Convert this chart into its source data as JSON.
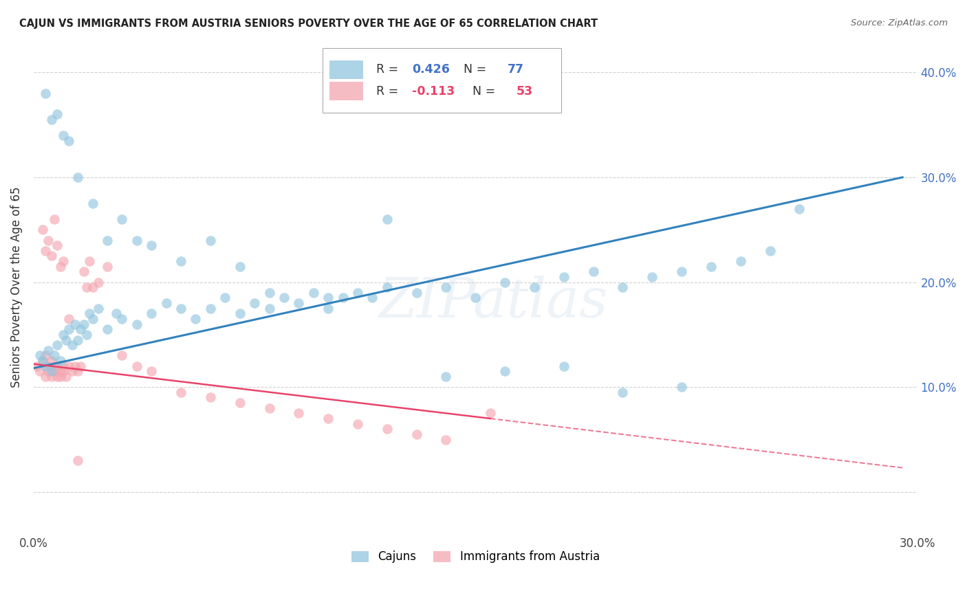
{
  "title": "CAJUN VS IMMIGRANTS FROM AUSTRIA SENIORS POVERTY OVER THE AGE OF 65 CORRELATION CHART",
  "source": "Source: ZipAtlas.com",
  "ylabel": "Seniors Poverty Over the Age of 65",
  "xlim": [
    0.0,
    0.3
  ],
  "ylim": [
    -0.04,
    0.43
  ],
  "cajun_R": 0.426,
  "cajun_N": 77,
  "austria_R": -0.113,
  "austria_N": 53,
  "cajun_color": "#92c5de",
  "austria_color": "#f4a6b0",
  "cajun_line_color": "#3282bd",
  "austria_line_color": "#e8436a",
  "austria_line_solid_end": 0.155,
  "watermark": "ZIPatlas",
  "legend_R_color": "#4472c4",
  "legend_austria_R_color": "#e8436a",
  "cajun_x": [
    0.002,
    0.003,
    0.004,
    0.005,
    0.006,
    0.007,
    0.008,
    0.009,
    0.01,
    0.011,
    0.012,
    0.013,
    0.014,
    0.015,
    0.016,
    0.017,
    0.018,
    0.019,
    0.02,
    0.022,
    0.025,
    0.028,
    0.03,
    0.035,
    0.04,
    0.045,
    0.05,
    0.055,
    0.06,
    0.065,
    0.07,
    0.075,
    0.08,
    0.085,
    0.09,
    0.095,
    0.1,
    0.105,
    0.11,
    0.115,
    0.12,
    0.13,
    0.14,
    0.15,
    0.16,
    0.17,
    0.18,
    0.19,
    0.2,
    0.21,
    0.22,
    0.23,
    0.24,
    0.25,
    0.004,
    0.006,
    0.008,
    0.01,
    0.012,
    0.015,
    0.02,
    0.025,
    0.03,
    0.035,
    0.04,
    0.05,
    0.06,
    0.07,
    0.08,
    0.1,
    0.12,
    0.14,
    0.16,
    0.18,
    0.2,
    0.22,
    0.26
  ],
  "cajun_y": [
    0.13,
    0.125,
    0.12,
    0.135,
    0.115,
    0.13,
    0.14,
    0.125,
    0.15,
    0.145,
    0.155,
    0.14,
    0.16,
    0.145,
    0.155,
    0.16,
    0.15,
    0.17,
    0.165,
    0.175,
    0.155,
    0.17,
    0.165,
    0.16,
    0.17,
    0.18,
    0.175,
    0.165,
    0.175,
    0.185,
    0.17,
    0.18,
    0.175,
    0.185,
    0.18,
    0.19,
    0.175,
    0.185,
    0.19,
    0.185,
    0.195,
    0.19,
    0.195,
    0.185,
    0.2,
    0.195,
    0.205,
    0.21,
    0.195,
    0.205,
    0.21,
    0.215,
    0.22,
    0.23,
    0.38,
    0.355,
    0.36,
    0.34,
    0.335,
    0.3,
    0.275,
    0.24,
    0.26,
    0.24,
    0.235,
    0.22,
    0.24,
    0.215,
    0.19,
    0.185,
    0.26,
    0.11,
    0.115,
    0.12,
    0.095,
    0.1,
    0.27
  ],
  "austria_x": [
    0.001,
    0.002,
    0.003,
    0.004,
    0.004,
    0.005,
    0.005,
    0.006,
    0.006,
    0.007,
    0.007,
    0.008,
    0.008,
    0.009,
    0.009,
    0.01,
    0.01,
    0.011,
    0.012,
    0.013,
    0.014,
    0.015,
    0.016,
    0.017,
    0.018,
    0.019,
    0.02,
    0.022,
    0.025,
    0.03,
    0.035,
    0.04,
    0.05,
    0.06,
    0.07,
    0.08,
    0.09,
    0.1,
    0.11,
    0.12,
    0.13,
    0.14,
    0.155,
    0.003,
    0.004,
    0.005,
    0.006,
    0.007,
    0.008,
    0.009,
    0.01,
    0.012,
    0.015
  ],
  "austria_y": [
    0.12,
    0.115,
    0.125,
    0.11,
    0.13,
    0.115,
    0.12,
    0.125,
    0.11,
    0.115,
    0.12,
    0.11,
    0.12,
    0.115,
    0.11,
    0.12,
    0.115,
    0.11,
    0.12,
    0.115,
    0.12,
    0.115,
    0.12,
    0.21,
    0.195,
    0.22,
    0.195,
    0.2,
    0.215,
    0.13,
    0.12,
    0.115,
    0.095,
    0.09,
    0.085,
    0.08,
    0.075,
    0.07,
    0.065,
    0.06,
    0.055,
    0.05,
    0.075,
    0.25,
    0.23,
    0.24,
    0.225,
    0.26,
    0.235,
    0.215,
    0.22,
    0.165,
    0.03
  ]
}
